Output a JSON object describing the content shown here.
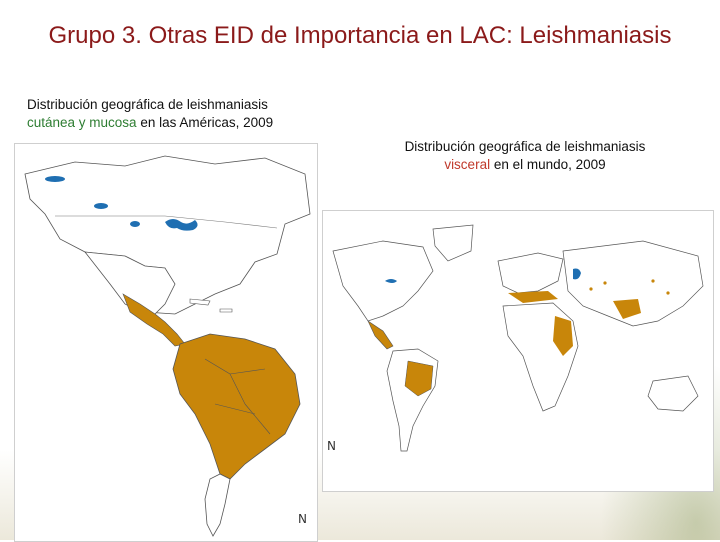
{
  "slide": {
    "title": "Grupo 3. Otras EID de Importancia en LAC: Leishmaniasis"
  },
  "left_map": {
    "caption_line1": "Distribución geográfica de leishmaniasis",
    "caption_highlight": "cutánea y mucosa",
    "caption_rest": " en las Américas, 2009",
    "north_symbol": "N"
  },
  "right_map": {
    "caption_line1": "Distribución geográfica de leishmaniasis",
    "caption_highlight": "visceral",
    "caption_rest": " en el mundo, 2009",
    "north_symbol": "N"
  },
  "colors": {
    "title": "#8b1a1a",
    "endemic": "#c8860a",
    "water": "#1f6fb2",
    "land": "#ffffff",
    "border": "#555555",
    "highlight_cutanea": "#2e7d32",
    "highlight_visceral": "#c0392b"
  }
}
